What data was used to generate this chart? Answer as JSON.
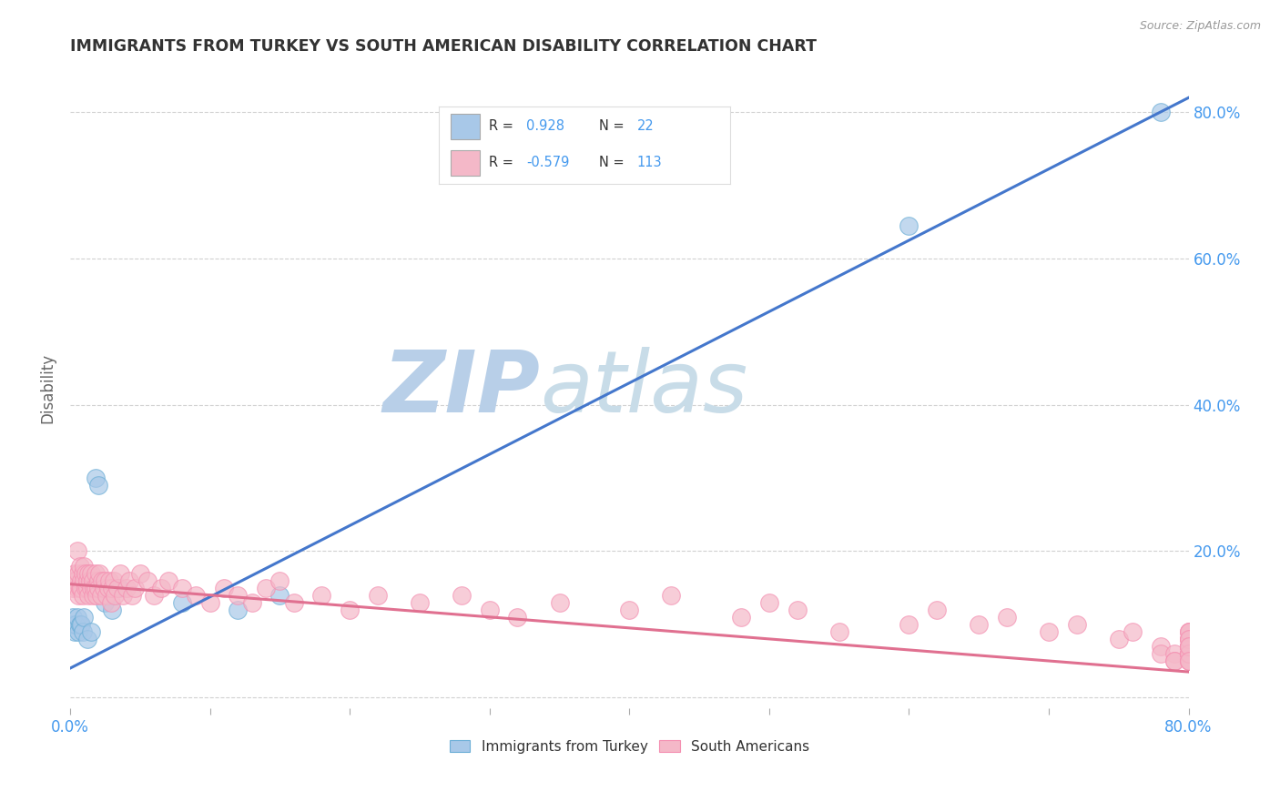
{
  "title": "IMMIGRANTS FROM TURKEY VS SOUTH AMERICAN DISABILITY CORRELATION CHART",
  "source": "Source: ZipAtlas.com",
  "ylabel": "Disability",
  "xlim": [
    0,
    0.8
  ],
  "ylim": [
    -0.015,
    0.86
  ],
  "legend_R_blue": "0.928",
  "legend_N_blue": "22",
  "legend_R_pink": "-0.579",
  "legend_N_pink": "113",
  "blue_fill_color": "#a8c8e8",
  "pink_fill_color": "#f4b8c8",
  "blue_edge_color": "#6baed6",
  "pink_edge_color": "#f48fb1",
  "blue_line_color": "#4477cc",
  "pink_line_color": "#e07090",
  "blue_scatter_x": [
    0.001,
    0.002,
    0.003,
    0.004,
    0.005,
    0.006,
    0.007,
    0.008,
    0.009,
    0.01,
    0.012,
    0.015,
    0.018,
    0.02,
    0.025,
    0.03,
    0.035,
    0.08,
    0.12,
    0.15,
    0.6,
    0.78
  ],
  "blue_scatter_y": [
    0.1,
    0.11,
    0.09,
    0.1,
    0.11,
    0.09,
    0.1,
    0.1,
    0.09,
    0.11,
    0.08,
    0.09,
    0.3,
    0.29,
    0.13,
    0.12,
    0.15,
    0.13,
    0.12,
    0.14,
    0.645,
    0.8
  ],
  "pink_scatter_x": [
    0.001,
    0.002,
    0.003,
    0.004,
    0.005,
    0.005,
    0.006,
    0.006,
    0.007,
    0.007,
    0.008,
    0.008,
    0.009,
    0.009,
    0.01,
    0.01,
    0.011,
    0.011,
    0.012,
    0.012,
    0.013,
    0.013,
    0.014,
    0.015,
    0.015,
    0.016,
    0.016,
    0.017,
    0.018,
    0.018,
    0.019,
    0.02,
    0.02,
    0.021,
    0.022,
    0.023,
    0.024,
    0.025,
    0.026,
    0.027,
    0.028,
    0.029,
    0.03,
    0.031,
    0.032,
    0.034,
    0.036,
    0.038,
    0.04,
    0.042,
    0.044,
    0.046,
    0.05,
    0.055,
    0.06,
    0.065,
    0.07,
    0.08,
    0.09,
    0.1,
    0.11,
    0.12,
    0.13,
    0.14,
    0.15,
    0.16,
    0.18,
    0.2,
    0.22,
    0.25,
    0.28,
    0.3,
    0.32,
    0.35,
    0.4,
    0.43,
    0.48,
    0.5,
    0.52,
    0.55,
    0.6,
    0.62,
    0.65,
    0.67,
    0.7,
    0.72,
    0.75,
    0.76,
    0.78,
    0.78,
    0.79,
    0.79,
    0.79,
    0.8,
    0.8,
    0.8,
    0.8,
    0.8,
    0.8,
    0.8,
    0.8,
    0.8,
    0.8,
    0.8,
    0.8,
    0.8,
    0.8,
    0.8,
    0.8,
    0.8,
    0.8,
    0.8,
    0.8
  ],
  "pink_scatter_y": [
    0.16,
    0.15,
    0.17,
    0.16,
    0.15,
    0.2,
    0.14,
    0.17,
    0.15,
    0.18,
    0.16,
    0.15,
    0.17,
    0.14,
    0.16,
    0.18,
    0.15,
    0.17,
    0.15,
    0.16,
    0.14,
    0.17,
    0.16,
    0.15,
    0.17,
    0.14,
    0.16,
    0.15,
    0.15,
    0.17,
    0.14,
    0.16,
    0.15,
    0.17,
    0.14,
    0.16,
    0.15,
    0.16,
    0.14,
    0.15,
    0.16,
    0.13,
    0.15,
    0.16,
    0.14,
    0.15,
    0.17,
    0.14,
    0.15,
    0.16,
    0.14,
    0.15,
    0.17,
    0.16,
    0.14,
    0.15,
    0.16,
    0.15,
    0.14,
    0.13,
    0.15,
    0.14,
    0.13,
    0.15,
    0.16,
    0.13,
    0.14,
    0.12,
    0.14,
    0.13,
    0.14,
    0.12,
    0.11,
    0.13,
    0.12,
    0.14,
    0.11,
    0.13,
    0.12,
    0.09,
    0.1,
    0.12,
    0.1,
    0.11,
    0.09,
    0.1,
    0.08,
    0.09,
    0.07,
    0.06,
    0.06,
    0.05,
    0.05,
    0.07,
    0.08,
    0.08,
    0.09,
    0.09,
    0.06,
    0.07,
    0.08,
    0.09,
    0.07,
    0.06,
    0.07,
    0.05,
    0.06,
    0.07,
    0.08,
    0.05,
    0.06,
    0.07,
    0.05
  ],
  "blue_line_x": [
    0.0,
    0.8
  ],
  "blue_line_y": [
    0.04,
    0.82
  ],
  "pink_line_x": [
    0.0,
    0.8
  ],
  "pink_line_y": [
    0.155,
    0.035
  ],
  "watermark_zip": "ZIP",
  "watermark_atlas": "atlas",
  "watermark_color": "#d0e4f0",
  "background_color": "#ffffff",
  "grid_color": "#cccccc",
  "title_color": "#333333",
  "axis_label_color": "#666666",
  "tick_color": "#4499ee",
  "legend_text_dark": "#333333",
  "legend_text_blue": "#4499ee"
}
